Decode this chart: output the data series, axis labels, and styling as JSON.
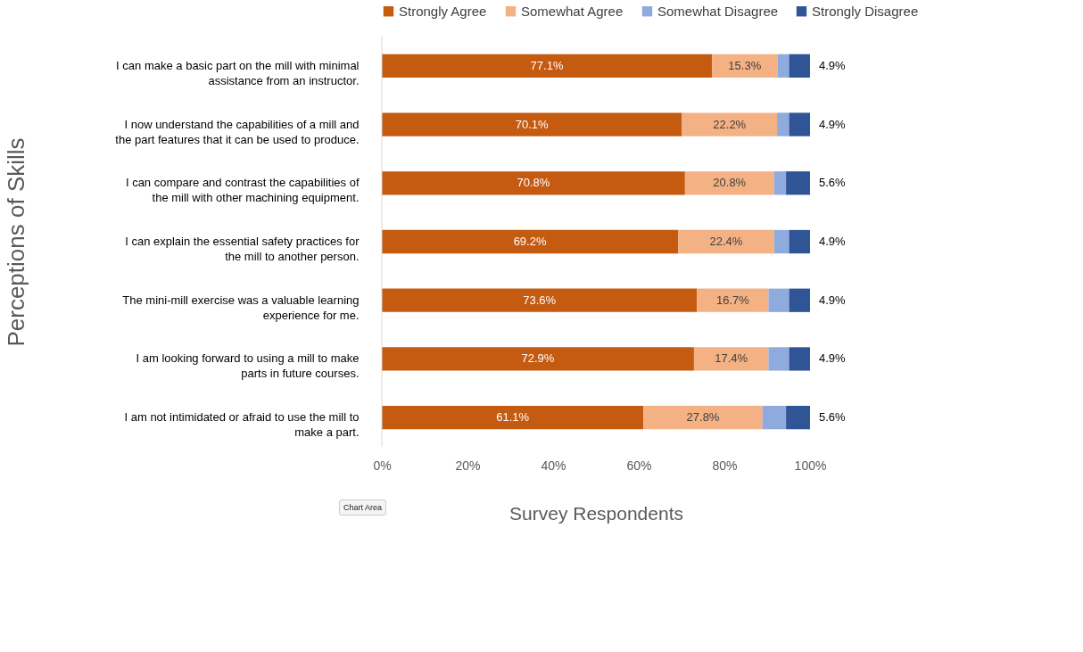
{
  "chart_data": {
    "type": "bar",
    "orientation": "horizontal",
    "stacked": true,
    "xlabel": "Survey Respondents",
    "ylabel": "Perceptions of Skills",
    "categories": [
      "I can make a basic part on the mill with minimal assistance from an instructor.",
      "I now understand the capabilities of a mill and the part features that it can be used to produce.",
      "I can compare and contrast the capabilities of the mill with other machining equipment.",
      "I can explain the essential safety practices for the mill to another person.",
      "The mini-mill exercise was a valuable learning experience for me.",
      "I am looking forward to using a mill to make parts in future courses.",
      "I am not intimidated or afraid to use the mill to make a part."
    ],
    "series": [
      {
        "name": "Strongly Agree",
        "color": "#c55a11",
        "values": [
          77.1,
          70.1,
          70.8,
          69.2,
          73.6,
          72.9,
          61.1
        ],
        "value_labels": [
          "77.1%",
          "70.1%",
          "70.8%",
          "69.2%",
          "73.6%",
          "72.9%",
          "61.1%"
        ]
      },
      {
        "name": "Somewhat Agree",
        "color": "#f4b183",
        "values": [
          15.3,
          22.2,
          20.8,
          22.4,
          16.7,
          17.4,
          27.8
        ],
        "value_labels": [
          "15.3%",
          "22.2%",
          "20.8%",
          "22.4%",
          "16.7%",
          "17.4%",
          "27.8%"
        ]
      },
      {
        "name": "Somewhat Disagree",
        "color": "#8faadc",
        "values": [
          2.7,
          2.8,
          2.8,
          3.5,
          4.8,
          4.8,
          5.5
        ]
      },
      {
        "name": "Strongly Disagree",
        "color": "#2f5597",
        "values": [
          4.9,
          4.9,
          5.6,
          4.9,
          4.9,
          4.9,
          5.6
        ],
        "value_labels": [
          "4.9%",
          "4.9%",
          "5.6%",
          "4.9%",
          "4.9%",
          "4.9%",
          "5.6%"
        ]
      }
    ],
    "xlim": [
      0,
      100
    ],
    "xticks": [
      {
        "value": 0,
        "label": "0%"
      },
      {
        "value": 20,
        "label": "20%"
      },
      {
        "value": 40,
        "label": "40%"
      },
      {
        "value": 60,
        "label": "60%"
      },
      {
        "value": 80,
        "label": "80%"
      },
      {
        "value": 100,
        "label": "100%"
      }
    ],
    "grid": false,
    "legend": "top",
    "annotations": [
      "Chart Area"
    ]
  }
}
